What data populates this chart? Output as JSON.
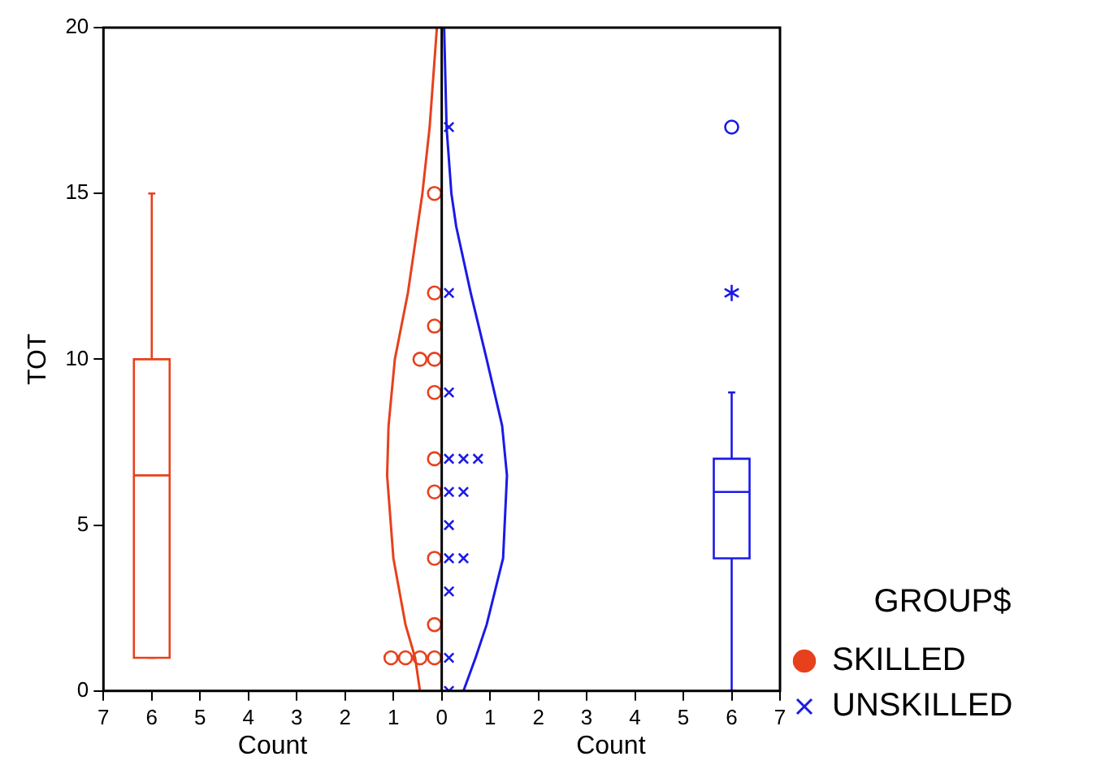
{
  "chart_data": {
    "type": "scatter",
    "xlabel": "Count",
    "ylabel": "TOT",
    "legend_title": "GROUP$",
    "legend": "bottom right",
    "grid": false,
    "xlim": [
      -7,
      7
    ],
    "xticks": [
      {
        "value": -7,
        "label": "7"
      },
      {
        "value": -6,
        "label": "6"
      },
      {
        "value": -5,
        "label": "5"
      },
      {
        "value": -4,
        "label": "4"
      },
      {
        "value": -3,
        "label": "3"
      },
      {
        "value": -2,
        "label": "2"
      },
      {
        "value": -1,
        "label": "1"
      },
      0,
      1,
      2,
      3,
      4,
      5,
      6,
      7
    ],
    "ylim": [
      0,
      20
    ],
    "yticks": [
      0,
      5,
      10,
      15,
      20
    ],
    "ref_lines": [
      {
        "axis": "x",
        "value": 0,
        "color": "#000000"
      }
    ],
    "series": [
      {
        "name": "SKILLED",
        "type": "scatter",
        "marker": "circle",
        "color": "#e8401c",
        "x": [
          -0.15,
          -0.15,
          -0.15,
          -0.15,
          -0.45,
          -0.15,
          -0.15,
          -0.15,
          -0.15,
          -0.15,
          -0.15,
          -0.45,
          -0.75,
          -1.05
        ],
        "values": [
          15,
          12,
          11,
          10,
          10,
          9,
          7,
          6,
          4,
          2,
          1,
          1,
          1,
          1
        ]
      },
      {
        "name": "UNSKILLED",
        "type": "scatter",
        "marker": "cross",
        "color": "#1a1ae6",
        "x": [
          0.15,
          0.15,
          0.15,
          0.15,
          0.45,
          0.75,
          0.15,
          0.45,
          0.15,
          0.15,
          0.45,
          0.15,
          0.15,
          0.15
        ],
        "values": [
          17,
          12,
          9,
          7,
          7,
          7,
          6,
          6,
          5,
          4,
          4,
          3,
          1,
          0
        ]
      },
      {
        "type": "line",
        "marker": "none",
        "color": "#e8401c",
        "x": [
          -0.45,
          -0.55,
          -0.75,
          -1.0,
          -1.13,
          -1.1,
          -0.97,
          -0.7,
          -0.5,
          -0.4,
          -0.25,
          -0.1
        ],
        "values": [
          0,
          1,
          2,
          4,
          6.5,
          8,
          10,
          12,
          14,
          15,
          17,
          20
        ]
      },
      {
        "type": "line",
        "marker": "none",
        "color": "#1a1ae6",
        "x": [
          0.45,
          0.7,
          0.93,
          1.27,
          1.35,
          1.25,
          0.93,
          0.6,
          0.3,
          0.2,
          0.1,
          0.05
        ],
        "values": [
          0,
          1,
          2,
          4,
          6.5,
          8,
          10,
          12,
          14,
          15,
          17,
          20
        ]
      },
      {
        "type": "box",
        "color": "#e8401c",
        "x": [
          -6
        ],
        "boxes": [
          {
            "low": 1,
            "q1": 1,
            "median": 6.5,
            "q3": 10,
            "high": 15
          }
        ]
      },
      {
        "type": "box",
        "color": "#1a1ae6",
        "x": [
          6
        ],
        "boxes": [
          {
            "low": 0,
            "q1": 4,
            "median": 6,
            "q3": 7,
            "high": 9,
            "outliers": [
              12,
              17
            ]
          }
        ]
      }
    ]
  }
}
